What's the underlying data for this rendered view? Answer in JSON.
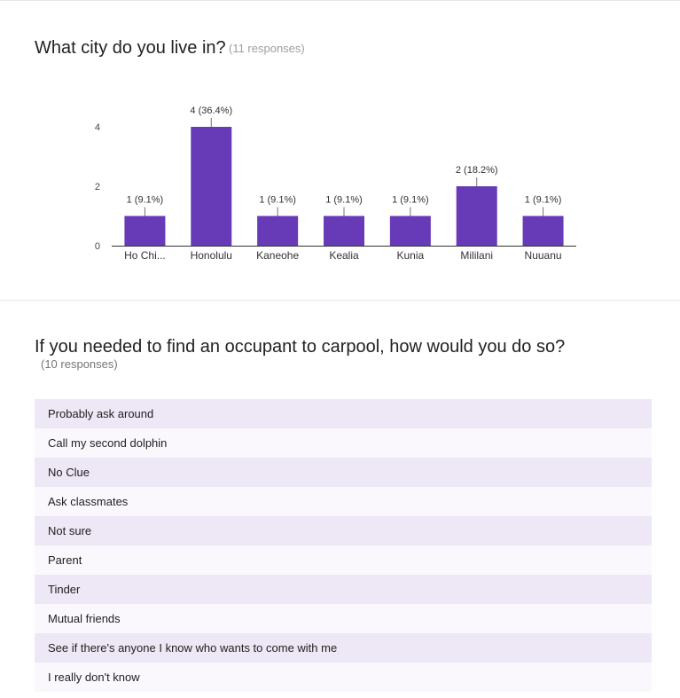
{
  "question1": {
    "title": "What city do you live in?",
    "responses_label": "(11 responses)"
  },
  "chart_data": {
    "type": "bar",
    "title": "What city do you live in?",
    "subtitle": "(11 responses)",
    "categories": [
      "Ho Chi...",
      "Honolulu",
      "Kaneohe",
      "Kealia",
      "Kunia",
      "Mililani",
      "Nuuanu"
    ],
    "values": [
      1,
      4,
      1,
      1,
      1,
      2,
      1
    ],
    "data_labels": [
      "1 (9.1%)",
      "4 (36.4%)",
      "1 (9.1%)",
      "1 (9.1%)",
      "1 (9.1%)",
      "2 (18.2%)",
      "1 (9.1%)"
    ],
    "yticks": [
      0,
      2,
      4
    ],
    "ylim": [
      0,
      4
    ],
    "grid": false,
    "bar_color": "#673ab7"
  },
  "question2": {
    "title": "If you needed to find an occupant to carpool, how would you do so?",
    "responses_label": "(10 responses)",
    "responses": [
      "Probably ask around",
      "Call my second dolphin",
      "No Clue",
      "Ask classmates",
      "Not sure",
      "Parent",
      "Tinder",
      "Mutual friends",
      "See if there's anyone I know who wants to come with me",
      "I really don't know"
    ]
  },
  "colors": {
    "accent": "#673ab7",
    "row_odd": "#ede7f6",
    "row_even": "#faf8fd"
  }
}
